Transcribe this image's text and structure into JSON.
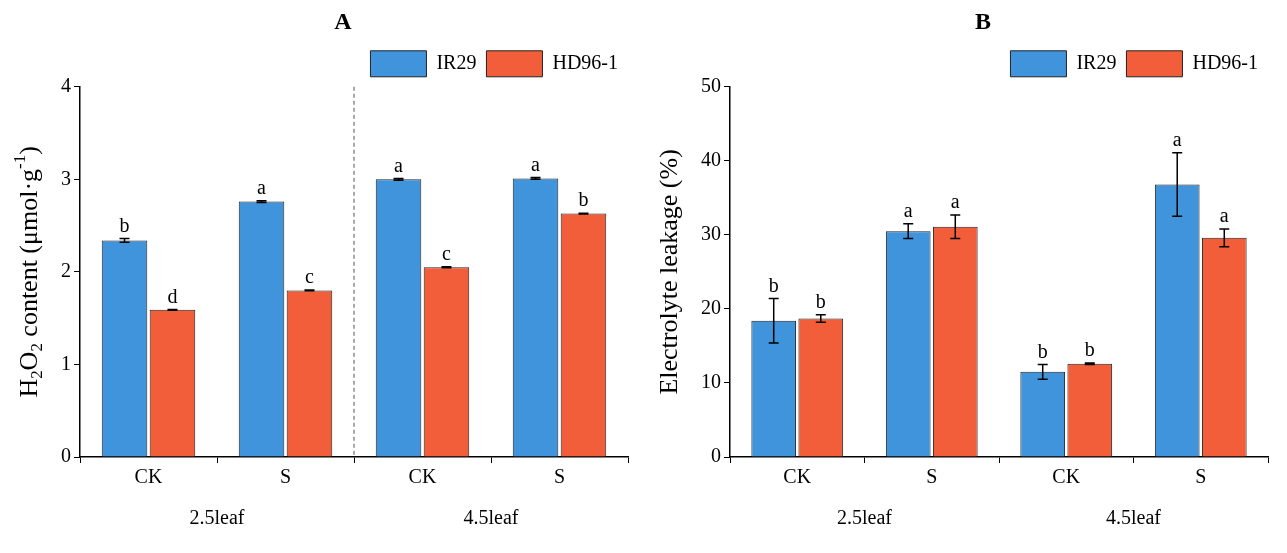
{
  "chart_data": [
    {
      "type": "bar",
      "title": "A",
      "ylabel": "H$_{2}$O$_{2}$ content (μmol·g$^{-1}$)",
      "categories": [
        "CK",
        "S",
        "CK",
        "S"
      ],
      "annotations": [
        "2.5leaf",
        "4.5leaf"
      ],
      "ylim": [
        0,
        4
      ],
      "yticks": [
        0,
        1,
        2,
        3,
        4
      ],
      "grid": false,
      "legend": "top right",
      "series": [
        {
          "name": "IR29",
          "color": "#3f94dc",
          "values": [
            2.34,
            2.76,
            3.0,
            3.01
          ],
          "errors": [
            0.02,
            0.01,
            0.01,
            0.01
          ],
          "value_labels": [
            "b",
            "a",
            "a",
            "a"
          ]
        },
        {
          "name": "HD96-1",
          "color": "#f25e3a",
          "values": [
            1.59,
            1.8,
            2.05,
            2.63
          ],
          "errors": [
            0.005,
            0.005,
            0.005,
            0.005
          ],
          "value_labels": [
            "d",
            "c",
            "c",
            "b"
          ]
        }
      ]
    },
    {
      "type": "bar",
      "title": "B",
      "ylabel": "Electrolyte leakage (%)",
      "categories": [
        "CK",
        "S",
        "CK",
        "S"
      ],
      "annotations": [
        "2.5leaf",
        "4.5leaf"
      ],
      "ylim": [
        0,
        50
      ],
      "yticks": [
        0,
        10,
        20,
        30,
        40,
        50
      ],
      "grid": false,
      "legend": "top right",
      "series": [
        {
          "name": "IR29",
          "color": "#3f94dc",
          "values": [
            18.4,
            30.5,
            11.5,
            36.8
          ],
          "errors": [
            3.0,
            1.0,
            1.0,
            4.3
          ],
          "value_labels": [
            "b",
            "a",
            "b",
            "a"
          ]
        },
        {
          "name": "HD96-1",
          "color": "#f25e3a",
          "values": [
            18.7,
            31.1,
            12.6,
            29.6
          ],
          "errors": [
            0.5,
            1.6,
            0.1,
            1.2
          ],
          "value_labels": [
            "b",
            "a",
            "b",
            "a"
          ]
        }
      ]
    }
  ]
}
